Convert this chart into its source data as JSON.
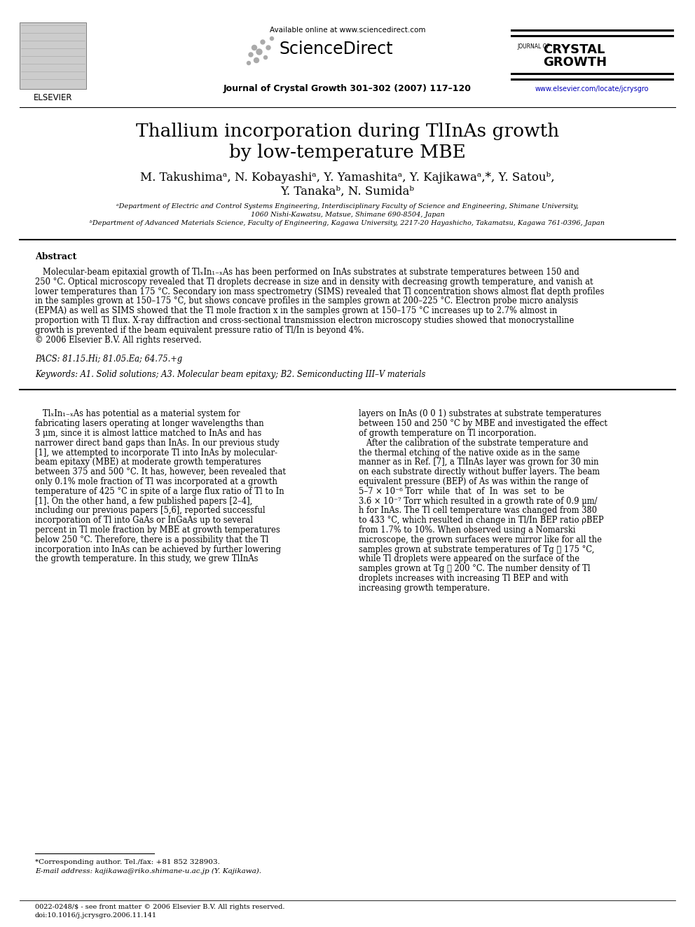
{
  "title_line1": "Thallium incorporation during TlInAs growth",
  "title_line2": "by low-temperature MBE",
  "authors_line1": "M. Takushimaᵃ, N. Kobayashiᵃ, Y. Yamashitaᵃ, Y. Kajikawaᵃ,*, Y. Satouᵇ,",
  "authors_line2": "Y. Tanakaᵇ, N. Sumidaᵇ",
  "affil_a": "ᵃDepartment of Electric and Control Systems Engineering, Interdisciplinary Faculty of Science and Engineering, Shimane University,",
  "affil_a2": "1060 Nishi-Kawatsu, Matsue, Shimane 690-8504, Japan",
  "affil_b": "ᵇDepartment of Advanced Materials Science, Faculty of Engineering, Kagawa University, 2217-20 Hayashicho, Takamatsu, Kagawa 761-0396, Japan",
  "header_available": "Available online at www.sciencedirect.com",
  "header_journal_text": "Journal of Crystal Growth 301–302 (2007) 117–120",
  "header_url": "www.elsevier.com/locate/jcrysgro",
  "elsevier_text": "ELSEVIER",
  "abstract_title": "Abstract",
  "pacs_text": "PACS: 81.15.Hi; 81.05.Ea; 64.75.+g",
  "keywords_text": "Keywords: A1. Solid solutions; A3. Molecular beam epitaxy; B2. Semiconducting III–V materials",
  "footnote_corresponding": "*Corresponding author. Tel./fax: +81 852 328903.",
  "footnote_email": "E-mail address: kajikawa@riko.shimane-u.ac.jp (Y. Kajikawa).",
  "footnote_issn": "0022-0248/$ - see front matter © 2006 Elsevier B.V. All rights reserved.",
  "footnote_doi": "doi:10.1016/j.jcrysgro.2006.11.141",
  "bg_color": "#ffffff",
  "text_color": "#000000",
  "link_color": "#0000cc",
  "abstract_lines": [
    "   Molecular-beam epitaxial growth of TlₓIn₁₋ₓAs has been performed on InAs substrates at substrate temperatures between 150 and",
    "250 °C. Optical microscopy revealed that Tl droplets decrease in size and in density with decreasing growth temperature, and vanish at",
    "lower temperatures than 175 °C. Secondary ion mass spectrometry (SIMS) revealed that Tl concentration shows almost flat depth profiles",
    "in the samples grown at 150–175 °C, but shows concave profiles in the samples grown at 200–225 °C. Electron probe micro analysis",
    "(EPMA) as well as SIMS showed that the Tl mole fraction x in the samples grown at 150–175 °C increases up to 2.7% almost in",
    "proportion with Tl flux. X-ray diffraction and cross-sectional transmission electron microscopy studies showed that monocrystalline",
    "growth is prevented if the beam equivalent pressure ratio of Tl/In is beyond 4%.",
    "© 2006 Elsevier B.V. All rights reserved."
  ],
  "col1_lines": [
    "   TlₓIn₁₋ₓAs has potential as a material system for",
    "fabricating lasers operating at longer wavelengths than",
    "3 μm, since it is almost lattice matched to InAs and has",
    "narrower direct band gaps than InAs. In our previous study",
    "[1], we attempted to incorporate Tl into InAs by molecular-",
    "beam epitaxy (MBE) at moderate growth temperatures",
    "between 375 and 500 °C. It has, however, been revealed that",
    "only 0.1% mole fraction of Tl was incorporated at a growth",
    "temperature of 425 °C in spite of a large flux ratio of Tl to In",
    "[1]. On the other hand, a few published papers [2–4],",
    "including our previous papers [5,6], reported successful",
    "incorporation of Tl into GaAs or InGaAs up to several",
    "percent in Tl mole fraction by MBE at growth temperatures",
    "below 250 °C. Therefore, there is a possibility that the Tl",
    "incorporation into InAs can be achieved by further lowering",
    "the growth temperature. In this study, we grew TlInAs"
  ],
  "col2_lines": [
    "layers on InAs (0 0 1) substrates at substrate temperatures",
    "between 150 and 250 °C by MBE and investigated the effect",
    "of growth temperature on Tl incorporation.",
    "   After the calibration of the substrate temperature and",
    "the thermal etching of the native oxide as in the same",
    "manner as in Ref. [7], a TlInAs layer was grown for 30 min",
    "on each substrate directly without buffer layers. The beam",
    "equivalent pressure (BEP) of As was within the range of",
    "5–7 × 10⁻⁶ Torr  while  that  of  In  was  set  to  be",
    "3.6 × 10⁻⁷ Torr which resulted in a growth rate of 0.9 μm/",
    "h for InAs. The Tl cell temperature was changed from 380",
    "to 433 °C, which resulted in change in Tl/In BEP ratio ρBEP",
    "from 1.7% to 10%. When observed using a Nomarski",
    "microscope, the grown surfaces were mirror like for all the",
    "samples grown at substrate temperatures of Tg ⩽ 175 °C,",
    "while Tl droplets were appeared on the surface of the",
    "samples grown at Tg ⩾ 200 °C. The number density of Tl",
    "droplets increases with increasing Tl BEP and with",
    "increasing growth temperature."
  ]
}
